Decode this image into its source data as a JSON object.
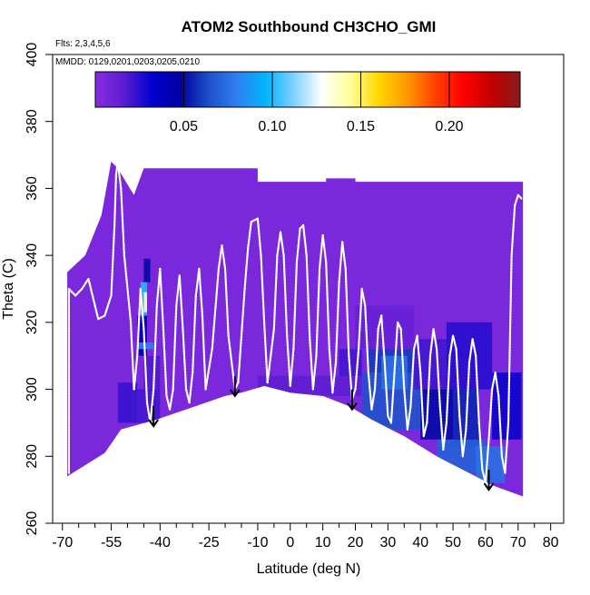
{
  "chart_data": {
    "type": "heatmap",
    "title": "ATOM2 Southbound CH3CHO_GMI",
    "subtitle_flights": "Flts: 2,3,4,5,6",
    "subtitle_dates": "MMDD: 0129,0201,0203,0205,0210",
    "xlabel": "Latitude (deg N)",
    "ylabel": "Theta (C)",
    "xlim": [
      -73,
      84
    ],
    "ylim": [
      260,
      400
    ],
    "x_ticks": [
      -70,
      -55,
      -40,
      -25,
      -10,
      0,
      10,
      20,
      30,
      40,
      50,
      60,
      70,
      80
    ],
    "x_tick_labels": [
      "-70",
      "-55",
      "-40",
      "-25",
      "-10",
      "0",
      "10",
      "20",
      "30",
      "40",
      "50",
      "60",
      "70",
      "80"
    ],
    "x_minor_ticks": [
      -65,
      -60,
      -50,
      -45,
      -35,
      -30,
      -20,
      -15,
      -5,
      5,
      15,
      25,
      35,
      45,
      55,
      65,
      75
    ],
    "y_ticks": [
      260,
      280,
      300,
      320,
      340,
      360,
      380,
      400
    ],
    "y_tick_labels": [
      "260",
      "280",
      "300",
      "320",
      "340",
      "360",
      "380",
      "400"
    ],
    "colorbar": {
      "min": 0.0,
      "max": 0.24,
      "ticks": [
        0.05,
        0.1,
        0.15,
        0.2
      ],
      "tick_labels": [
        "0.05",
        "0.10",
        "0.15",
        "0.20"
      ],
      "colors": [
        "#8a2be2",
        "#5a1ed0",
        "#0000cd",
        "#0000a0",
        "#1e50c8",
        "#2f7ff0",
        "#00b4ff",
        "#7fd0ff",
        "#ffffff",
        "#ffff99",
        "#ffd700",
        "#ff9900",
        "#ff4000",
        "#ff0000",
        "#c00000",
        "#8b1a1a"
      ]
    },
    "background_value": 0.005,
    "top_boundary": [
      [
        -68.5,
        335
      ],
      [
        -63,
        340
      ],
      [
        -58,
        352
      ],
      [
        -55,
        368
      ],
      [
        -53,
        366
      ],
      [
        -48,
        358
      ],
      [
        -45,
        366
      ],
      [
        -10,
        366
      ],
      [
        -10,
        362
      ],
      [
        11,
        362
      ],
      [
        11,
        363
      ],
      [
        20,
        363
      ],
      [
        20,
        362
      ],
      [
        71.5,
        362
      ]
    ],
    "bottom_boundary": [
      [
        -68.5,
        274
      ],
      [
        -57,
        281
      ],
      [
        -52,
        288
      ],
      [
        -41,
        291
      ],
      [
        -32,
        294
      ],
      [
        -20,
        298
      ],
      [
        -15,
        299
      ],
      [
        -8,
        301
      ],
      [
        0,
        299
      ],
      [
        10,
        298
      ],
      [
        18,
        295
      ],
      [
        25,
        291
      ],
      [
        35,
        286
      ],
      [
        45,
        280
      ],
      [
        55,
        275
      ],
      [
        63,
        271
      ],
      [
        71.5,
        268
      ]
    ],
    "cells": [
      {
        "lat": [
          -47,
          -44
        ],
        "theta": [
          310,
          322
        ],
        "value": 0.04
      },
      {
        "lat": [
          -46,
          -44
        ],
        "theta": [
          322,
          332
        ],
        "value": 0.1
      },
      {
        "lat": [
          -45,
          -44
        ],
        "theta": [
          323,
          329
        ],
        "value": 0.14
      },
      {
        "lat": [
          -45,
          -43
        ],
        "theta": [
          332,
          339
        ],
        "value": 0.05
      },
      {
        "lat": [
          -47,
          -42
        ],
        "theta": [
          312,
          314
        ],
        "value": 0.08
      },
      {
        "lat": [
          -53,
          -47
        ],
        "theta": [
          290,
          302
        ],
        "value": 0.022
      },
      {
        "lat": [
          -47,
          -40
        ],
        "theta": [
          290,
          300
        ],
        "value": 0.02
      },
      {
        "lat": [
          -45,
          -40
        ],
        "theta": [
          300,
          310
        ],
        "value": 0.018
      },
      {
        "lat": [
          -10,
          22
        ],
        "theta": [
          298,
          304
        ],
        "value": 0.015
      },
      {
        "lat": [
          15,
          22
        ],
        "theta": [
          304,
          312
        ],
        "value": 0.02
      },
      {
        "lat": [
          24,
          38
        ],
        "theta": [
          305,
          312
        ],
        "value": 0.06
      },
      {
        "lat": [
          22,
          40
        ],
        "theta": [
          288,
          305
        ],
        "value": 0.065
      },
      {
        "lat": [
          28,
          36
        ],
        "theta": [
          300,
          310
        ],
        "value": 0.075
      },
      {
        "lat": [
          40,
          50
        ],
        "theta": [
          285,
          300
        ],
        "value": 0.05
      },
      {
        "lat": [
          50,
          58
        ],
        "theta": [
          283,
          300
        ],
        "value": 0.055
      },
      {
        "lat": [
          45,
          60
        ],
        "theta": [
          275,
          285
        ],
        "value": 0.07
      },
      {
        "lat": [
          57,
          66
        ],
        "theta": [
          272,
          283
        ],
        "value": 0.075
      },
      {
        "lat": [
          38,
          48
        ],
        "theta": [
          300,
          315
        ],
        "value": 0.02
      },
      {
        "lat": [
          48,
          62
        ],
        "theta": [
          300,
          320
        ],
        "value": 0.025
      },
      {
        "lat": [
          62,
          71
        ],
        "theta": [
          285,
          305
        ],
        "value": 0.03
      },
      {
        "lat": [
          20,
          38
        ],
        "theta": [
          312,
          325
        ],
        "value": 0.012
      }
    ],
    "flight_track": [
      [
        -68,
        275
      ],
      [
        -68,
        330
      ],
      [
        -66,
        328
      ],
      [
        -64,
        330
      ],
      [
        -62,
        333
      ],
      [
        -60,
        325
      ],
      [
        -59,
        321
      ],
      [
        -57,
        322
      ],
      [
        -55,
        328
      ],
      [
        -54,
        349
      ],
      [
        -53.5,
        364
      ],
      [
        -53,
        368
      ],
      [
        -52,
        360
      ],
      [
        -51,
        340
      ],
      [
        -49,
        320
      ],
      [
        -48,
        300
      ],
      [
        -47,
        310
      ],
      [
        -46,
        330
      ],
      [
        -45,
        318
      ],
      [
        -44,
        296
      ],
      [
        -43,
        290
      ],
      [
        -42,
        300
      ],
      [
        -41,
        325
      ],
      [
        -40,
        336
      ],
      [
        -39,
        318
      ],
      [
        -38,
        298
      ],
      [
        -37,
        294
      ],
      [
        -36,
        300
      ],
      [
        -35,
        325
      ],
      [
        -34,
        334
      ],
      [
        -33,
        318
      ],
      [
        -32,
        300
      ],
      [
        -31,
        296
      ],
      [
        -30,
        305
      ],
      [
        -29,
        328
      ],
      [
        -28,
        336
      ],
      [
        -27,
        322
      ],
      [
        -26,
        300
      ],
      [
        -24,
        312
      ],
      [
        -22,
        336
      ],
      [
        -21,
        343
      ],
      [
        -20,
        336
      ],
      [
        -19,
        316
      ],
      [
        -17,
        300
      ],
      [
        -16,
        302
      ],
      [
        -14,
        330
      ],
      [
        -13,
        342
      ],
      [
        -12,
        350
      ],
      [
        -10,
        351
      ],
      [
        -9,
        340
      ],
      [
        -8,
        320
      ],
      [
        -7,
        302
      ],
      [
        -5,
        318
      ],
      [
        -4,
        340
      ],
      [
        -3,
        347
      ],
      [
        -2,
        340
      ],
      [
        -1,
        316
      ],
      [
        0,
        301
      ],
      [
        1,
        312
      ],
      [
        2,
        338
      ],
      [
        3,
        348
      ],
      [
        4,
        349
      ],
      [
        5,
        340
      ],
      [
        6,
        315
      ],
      [
        7,
        300
      ],
      [
        8,
        310
      ],
      [
        9,
        336
      ],
      [
        10,
        346
      ],
      [
        11,
        338
      ],
      [
        12,
        312
      ],
      [
        13,
        299
      ],
      [
        14,
        308
      ],
      [
        15,
        332
      ],
      [
        16,
        344
      ],
      [
        17,
        336
      ],
      [
        18,
        310
      ],
      [
        19,
        297
      ],
      [
        20,
        300
      ],
      [
        21,
        312
      ],
      [
        22,
        330
      ],
      [
        23,
        325
      ],
      [
        24,
        305
      ],
      [
        25,
        294
      ],
      [
        26,
        300
      ],
      [
        27,
        318
      ],
      [
        28,
        322
      ],
      [
        29,
        308
      ],
      [
        30,
        292
      ],
      [
        31,
        290
      ],
      [
        32,
        305
      ],
      [
        33,
        320
      ],
      [
        34,
        318
      ],
      [
        35,
        300
      ],
      [
        36,
        288
      ],
      [
        37,
        295
      ],
      [
        38,
        312
      ],
      [
        39,
        316
      ],
      [
        40,
        305
      ],
      [
        41,
        286
      ],
      [
        42,
        290
      ],
      [
        43,
        310
      ],
      [
        44,
        318
      ],
      [
        45,
        312
      ],
      [
        46,
        295
      ],
      [
        47,
        282
      ],
      [
        48,
        290
      ],
      [
        49,
        310
      ],
      [
        50,
        316
      ],
      [
        51,
        312
      ],
      [
        52,
        292
      ],
      [
        53,
        280
      ],
      [
        54,
        288
      ],
      [
        55,
        308
      ],
      [
        56,
        315
      ],
      [
        57,
        310
      ],
      [
        58,
        290
      ],
      [
        59,
        276
      ],
      [
        60,
        272
      ],
      [
        61,
        285
      ],
      [
        62,
        300
      ],
      [
        63,
        305
      ],
      [
        64,
        298
      ],
      [
        65,
        280
      ],
      [
        66,
        275
      ],
      [
        67,
        290
      ],
      [
        68,
        340
      ],
      [
        69,
        355
      ],
      [
        70,
        358
      ],
      [
        71,
        357
      ]
    ],
    "arrows": [
      {
        "lat": -42,
        "theta": 289
      },
      {
        "lat": -17,
        "theta": 298
      },
      {
        "lat": 19,
        "theta": 294
      },
      {
        "lat": 61,
        "theta": 270
      }
    ]
  }
}
